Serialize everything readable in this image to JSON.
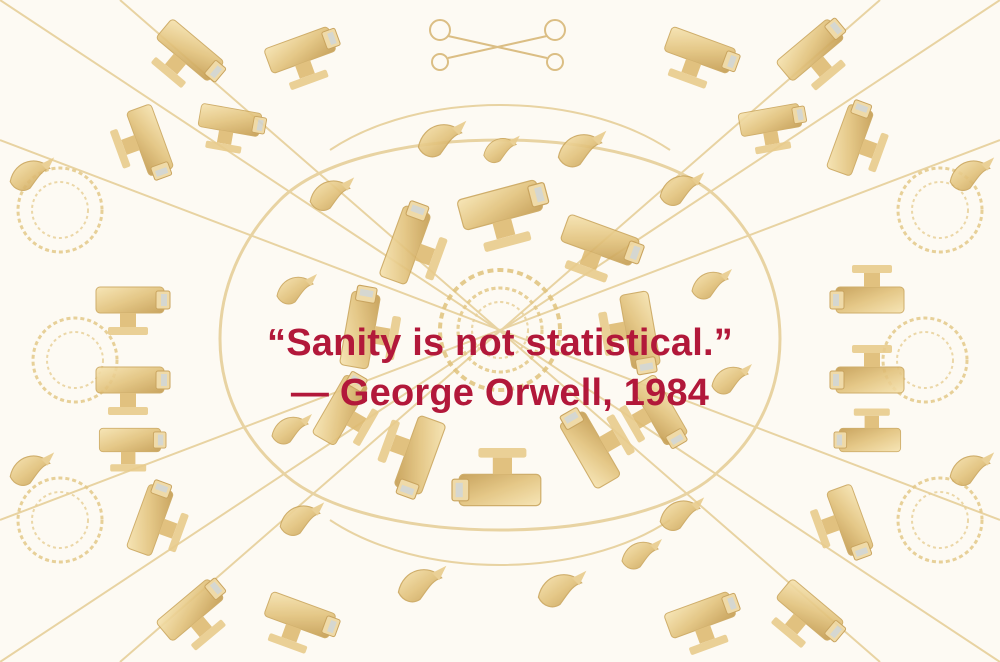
{
  "quote": {
    "text": "“Sanity is not statistical.”",
    "attribution": "— George Orwell, 1984"
  },
  "artwork": {
    "subject": "gold surveillance cameras, birds and chains kaleidoscope pattern",
    "colors": {
      "background": "#fdfaf3",
      "gold_light": "#f0d9a0",
      "gold_mid": "#d9b66a",
      "gold_dark": "#b48a3e",
      "quote": "#b2183a"
    }
  }
}
